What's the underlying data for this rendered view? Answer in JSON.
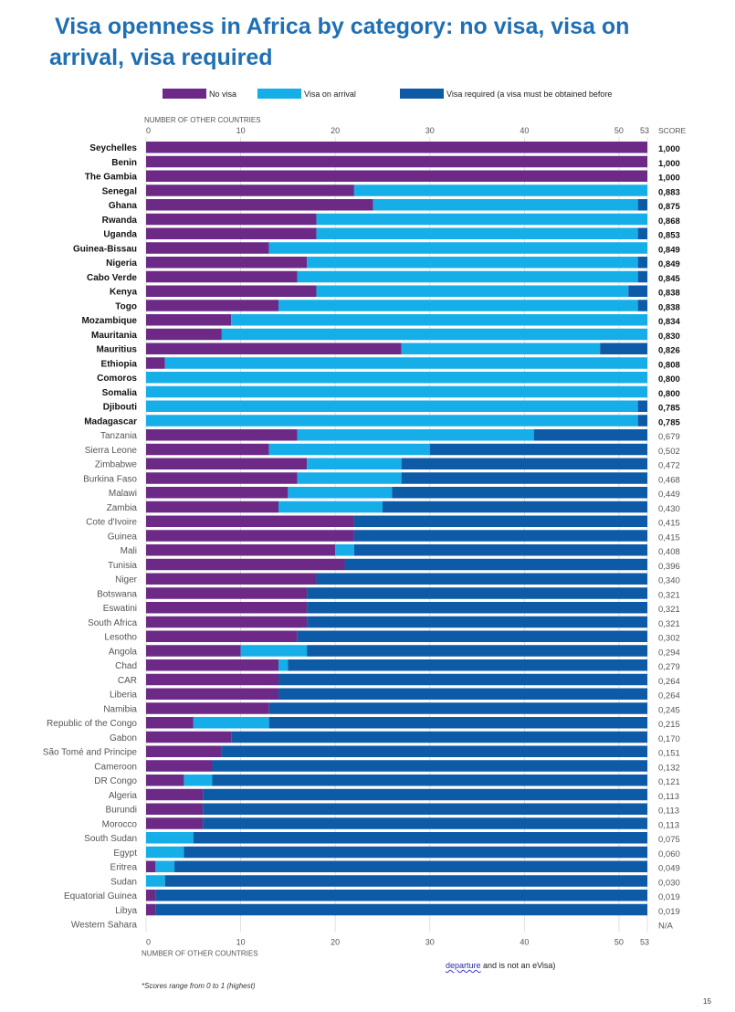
{
  "title_lines": [
    "Visa openness in Africa by category: no visa, visa on",
    "arrival, visa required"
  ],
  "legend": {
    "no_visa": "No visa",
    "visa_on_arrival": "Visa on arrival",
    "visa_required": "Visa required (a visa must be obtained before",
    "visa_required_cont_a": "departure",
    "visa_required_cont_b": " and is not an eVisa)"
  },
  "colors": {
    "no_visa": "#6c2a86",
    "visa_on_arrival": "#15aee8",
    "visa_required": "#0d5aa7"
  },
  "footnote": "*Scores range from 0 to 1 (highest)",
  "page_number": "15",
  "chart_data": {
    "type": "bar",
    "orientation": "horizontal",
    "stacked": true,
    "axis_label": "NUMBER OF OTHER COUNTRIES",
    "score_header": "SCORE",
    "xlim": [
      0,
      53
    ],
    "xticks": [
      "0",
      "10",
      "20",
      "30",
      "40",
      "50",
      "53"
    ],
    "xtick_values": [
      0,
      10,
      20,
      30,
      40,
      50,
      53
    ],
    "series_names": [
      "No visa",
      "Visa on arrival",
      "Visa required"
    ],
    "countries": [
      {
        "name": "Seychelles",
        "no_visa": 53,
        "arrival": 0,
        "required": 0,
        "score": "1,000",
        "bold": true
      },
      {
        "name": "Benin",
        "no_visa": 53,
        "arrival": 0,
        "required": 0,
        "score": "1,000",
        "bold": true
      },
      {
        "name": "The Gambia",
        "no_visa": 53,
        "arrival": 0,
        "required": 0,
        "score": "1,000",
        "bold": true
      },
      {
        "name": "Senegal",
        "no_visa": 22,
        "arrival": 31,
        "required": 0,
        "score": "0,883",
        "bold": true
      },
      {
        "name": "Ghana",
        "no_visa": 24,
        "arrival": 28,
        "required": 1,
        "score": "0,875",
        "bold": true
      },
      {
        "name": "Rwanda",
        "no_visa": 18,
        "arrival": 35,
        "required": 0,
        "score": "0,868",
        "bold": true
      },
      {
        "name": "Uganda",
        "no_visa": 18,
        "arrival": 34,
        "required": 1,
        "score": "0,853",
        "bold": true
      },
      {
        "name": "Guinea-Bissau",
        "no_visa": 13,
        "arrival": 40,
        "required": 0,
        "score": "0,849",
        "bold": true
      },
      {
        "name": "Nigeria",
        "no_visa": 17,
        "arrival": 35,
        "required": 1,
        "score": "0,849",
        "bold": true
      },
      {
        "name": "Cabo Verde",
        "no_visa": 16,
        "arrival": 36,
        "required": 1,
        "score": "0,845",
        "bold": true
      },
      {
        "name": "Kenya",
        "no_visa": 18,
        "arrival": 33,
        "required": 2,
        "score": "0,838",
        "bold": true
      },
      {
        "name": "Togo",
        "no_visa": 14,
        "arrival": 38,
        "required": 1,
        "score": "0,838",
        "bold": true
      },
      {
        "name": "Mozambique",
        "no_visa": 9,
        "arrival": 44,
        "required": 0,
        "score": "0,834",
        "bold": true
      },
      {
        "name": "Mauritania",
        "no_visa": 8,
        "arrival": 45,
        "required": 0,
        "score": "0,830",
        "bold": true
      },
      {
        "name": "Mauritius",
        "no_visa": 27,
        "arrival": 21,
        "required": 5,
        "score": "0,826",
        "bold": true
      },
      {
        "name": "Ethiopia",
        "no_visa": 2,
        "arrival": 51,
        "required": 0,
        "score": "0,808",
        "bold": true
      },
      {
        "name": "Comoros",
        "no_visa": 0,
        "arrival": 53,
        "required": 0,
        "score": "0,800",
        "bold": true
      },
      {
        "name": "Somalia",
        "no_visa": 0,
        "arrival": 53,
        "required": 0,
        "score": "0,800",
        "bold": true
      },
      {
        "name": "Djibouti",
        "no_visa": 0,
        "arrival": 52,
        "required": 1,
        "score": "0,785",
        "bold": true
      },
      {
        "name": "Madagascar",
        "no_visa": 0,
        "arrival": 52,
        "required": 1,
        "score": "0,785",
        "bold": true
      },
      {
        "name": "Tanzania",
        "no_visa": 16,
        "arrival": 25,
        "required": 12,
        "score": "0,679",
        "bold": false
      },
      {
        "name": "Sierra Leone",
        "no_visa": 13,
        "arrival": 17,
        "required": 23,
        "score": "0,502",
        "bold": false
      },
      {
        "name": "Zimbabwe",
        "no_visa": 17,
        "arrival": 10,
        "required": 26,
        "score": "0,472",
        "bold": false
      },
      {
        "name": "Burkina Faso",
        "no_visa": 16,
        "arrival": 11,
        "required": 26,
        "score": "0,468",
        "bold": false
      },
      {
        "name": "Malawi",
        "no_visa": 15,
        "arrival": 11,
        "required": 27,
        "score": "0,449",
        "bold": false
      },
      {
        "name": "Zambia",
        "no_visa": 14,
        "arrival": 11,
        "required": 28,
        "score": "0,430",
        "bold": false
      },
      {
        "name": "Cote d'Ivoire",
        "no_visa": 22,
        "arrival": 0,
        "required": 31,
        "score": "0,415",
        "bold": false
      },
      {
        "name": "Guinea",
        "no_visa": 22,
        "arrival": 0,
        "required": 31,
        "score": "0,415",
        "bold": false
      },
      {
        "name": "Mali",
        "no_visa": 20,
        "arrival": 2,
        "required": 31,
        "score": "0,408",
        "bold": false
      },
      {
        "name": "Tunisia",
        "no_visa": 21,
        "arrival": 0,
        "required": 32,
        "score": "0,396",
        "bold": false
      },
      {
        "name": "Niger",
        "no_visa": 18,
        "arrival": 0,
        "required": 35,
        "score": "0,340",
        "bold": false
      },
      {
        "name": "Botswana",
        "no_visa": 17,
        "arrival": 0,
        "required": 36,
        "score": "0,321",
        "bold": false
      },
      {
        "name": "Eswatini",
        "no_visa": 17,
        "arrival": 0,
        "required": 36,
        "score": "0,321",
        "bold": false
      },
      {
        "name": "South Africa",
        "no_visa": 17,
        "arrival": 0,
        "required": 36,
        "score": "0,321",
        "bold": false
      },
      {
        "name": "Lesotho",
        "no_visa": 16,
        "arrival": 0,
        "required": 37,
        "score": "0,302",
        "bold": false
      },
      {
        "name": "Angola",
        "no_visa": 10,
        "arrival": 7,
        "required": 36,
        "score": "0,294",
        "bold": false
      },
      {
        "name": "Chad",
        "no_visa": 14,
        "arrival": 1,
        "required": 38,
        "score": "0,279",
        "bold": false
      },
      {
        "name": "CAR",
        "no_visa": 14,
        "arrival": 0,
        "required": 39,
        "score": "0,264",
        "bold": false
      },
      {
        "name": "Liberia",
        "no_visa": 14,
        "arrival": 0,
        "required": 39,
        "score": "0,264",
        "bold": false
      },
      {
        "name": "Namibia",
        "no_visa": 13,
        "arrival": 0,
        "required": 40,
        "score": "0,245",
        "bold": false
      },
      {
        "name": "Republic of the Congo",
        "no_visa": 5,
        "arrival": 8,
        "required": 40,
        "score": "0,215",
        "bold": false
      },
      {
        "name": "Gabon",
        "no_visa": 9,
        "arrival": 0,
        "required": 44,
        "score": "0,170",
        "bold": false
      },
      {
        "name": "São Tomé and Principe",
        "no_visa": 8,
        "arrival": 0,
        "required": 45,
        "score": "0,151",
        "bold": false
      },
      {
        "name": "Cameroon",
        "no_visa": 7,
        "arrival": 0,
        "required": 46,
        "score": "0,132",
        "bold": false
      },
      {
        "name": "DR Congo",
        "no_visa": 4,
        "arrival": 3,
        "required": 46,
        "score": "0,121",
        "bold": false
      },
      {
        "name": "Algeria",
        "no_visa": 6,
        "arrival": 0,
        "required": 47,
        "score": "0,113",
        "bold": false
      },
      {
        "name": "Burundi",
        "no_visa": 6,
        "arrival": 0,
        "required": 47,
        "score": "0,113",
        "bold": false
      },
      {
        "name": "Morocco",
        "no_visa": 6,
        "arrival": 0,
        "required": 47,
        "score": "0,113",
        "bold": false
      },
      {
        "name": "South Sudan",
        "no_visa": 0,
        "arrival": 5,
        "required": 48,
        "score": "0,075",
        "bold": false
      },
      {
        "name": "Egypt",
        "no_visa": 0,
        "arrival": 4,
        "required": 49,
        "score": "0,060",
        "bold": false
      },
      {
        "name": "Eritrea",
        "no_visa": 1,
        "arrival": 2,
        "required": 50,
        "score": "0,049",
        "bold": false
      },
      {
        "name": "Sudan",
        "no_visa": 0,
        "arrival": 2,
        "required": 51,
        "score": "0,030",
        "bold": false
      },
      {
        "name": "Equatorial Guinea",
        "no_visa": 1,
        "arrival": 0,
        "required": 52,
        "score": "0,019",
        "bold": false
      },
      {
        "name": "Libya",
        "no_visa": 1,
        "arrival": 0,
        "required": 52,
        "score": "0,019",
        "bold": false
      },
      {
        "name": "Western Sahara",
        "no_visa": 0,
        "arrival": 0,
        "required": 0,
        "score": "N/A",
        "bold": false
      }
    ]
  }
}
